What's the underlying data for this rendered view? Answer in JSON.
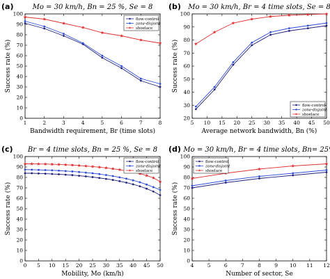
{
  "chart_data": [
    {
      "panel_label": "(a)",
      "type": "line",
      "title": "Mo = 30 km/h, Bn = 25 %, Se = 8",
      "xlabel": "Bandwidth requirement, Br (time slots)",
      "ylabel": "Success rate (%)",
      "xlim": [
        1,
        8
      ],
      "ylim": [
        0,
        100
      ],
      "xticks": [
        1,
        2,
        3,
        4,
        5,
        6,
        7,
        8
      ],
      "yticks": [
        0,
        10,
        20,
        30,
        40,
        50,
        60,
        70,
        80,
        90,
        100
      ],
      "legend_position": "top-right",
      "series": [
        {
          "name": "flow-control",
          "color": "#1f1f7a",
          "marker": "circle",
          "x": [
            1,
            2,
            3,
            4,
            5,
            6,
            7,
            8
          ],
          "values": [
            91,
            86,
            79,
            71,
            58,
            48,
            36,
            30
          ]
        },
        {
          "name": "zone-disjoint",
          "color": "#2b4bd6",
          "marker": "circle",
          "x": [
            1,
            2,
            3,
            4,
            5,
            6,
            7,
            8
          ],
          "values": [
            93,
            88,
            81,
            72,
            60,
            50,
            38,
            33
          ]
        },
        {
          "name": "shoelace",
          "color": "#e03030",
          "marker": "star",
          "x": [
            1,
            2,
            3,
            4,
            5,
            6,
            7,
            8
          ],
          "values": [
            97,
            95,
            91,
            87,
            82,
            79,
            75,
            72
          ]
        }
      ]
    },
    {
      "panel_label": "(b)",
      "type": "line",
      "title": "Mo = 30 km/h, Br = 4 time slots, Se = 8",
      "xlabel": "Average network bandwidth, Bn (%)",
      "ylabel": "Success rate (%)",
      "xlim": [
        5,
        50
      ],
      "ylim": [
        20,
        100
      ],
      "xticks": [
        5,
        10,
        15,
        20,
        25,
        30,
        35,
        40,
        45,
        50
      ],
      "yticks": [
        20,
        30,
        40,
        50,
        60,
        70,
        80,
        90,
        100
      ],
      "legend_position": "bottom-right",
      "series": [
        {
          "name": "flow-control",
          "color": "#1f1f7a",
          "marker": "circle",
          "x": [
            6.25,
            12.5,
            18.75,
            25,
            31.25,
            37.5,
            43.75,
            50
          ],
          "values": [
            27,
            42,
            61,
            76,
            84,
            87,
            89,
            91
          ]
        },
        {
          "name": "zone-disjoint",
          "color": "#2b4bd6",
          "marker": "circle",
          "x": [
            6.25,
            12.5,
            18.75,
            25,
            31.25,
            37.5,
            43.75,
            50
          ],
          "values": [
            29,
            44,
            63,
            78,
            86,
            89,
            91,
            93
          ]
        },
        {
          "name": "shoelace",
          "color": "#e03030",
          "marker": "star",
          "x": [
            6.25,
            12.5,
            18.75,
            25,
            31.25,
            37.5,
            43.75,
            50
          ],
          "values": [
            77,
            86,
            93,
            96,
            98,
            99,
            99.5,
            100
          ]
        }
      ]
    },
    {
      "panel_label": "(c)",
      "type": "line",
      "title": "Br = 4 time slots, Bn = 25 %, Se = 8",
      "xlabel": "Mobility, Mo (km/h)",
      "ylabel": "Success rate (%)",
      "xlim": [
        0,
        50
      ],
      "ylim": [
        0,
        100
      ],
      "xticks": [
        0,
        5,
        10,
        15,
        20,
        25,
        30,
        35,
        40,
        45,
        50
      ],
      "yticks": [
        0,
        10,
        20,
        30,
        40,
        50,
        60,
        70,
        80,
        90,
        100
      ],
      "legend_position": "top-right",
      "series": [
        {
          "name": "flow-control",
          "color": "#1f1f7a",
          "marker": "circle",
          "x": [
            0,
            2.5,
            5,
            7.5,
            10,
            12.5,
            15,
            17.5,
            20,
            22.5,
            25,
            27.5,
            30,
            32.5,
            35,
            37.5,
            40,
            42.5,
            45,
            47.5,
            50
          ],
          "values": [
            84,
            84,
            83.8,
            83.6,
            83.3,
            83,
            82.6,
            82.2,
            81.6,
            81,
            80.3,
            79.5,
            78.6,
            77.6,
            76.4,
            75,
            73.4,
            71.5,
            69.2,
            66.5,
            63
          ]
        },
        {
          "name": "zone-disjoint",
          "color": "#2b4bd6",
          "marker": "circle",
          "x": [
            0,
            2.5,
            5,
            7.5,
            10,
            12.5,
            15,
            17.5,
            20,
            22.5,
            25,
            27.5,
            30,
            32.5,
            35,
            37.5,
            40,
            42.5,
            45,
            47.5,
            50
          ],
          "values": [
            87.5,
            87.4,
            87.2,
            87,
            86.8,
            86.5,
            86.1,
            85.7,
            85.2,
            84.6,
            84,
            83.2,
            82.3,
            81.3,
            80.1,
            78.8,
            77.2,
            75.4,
            73.2,
            70.7,
            68
          ]
        },
        {
          "name": "shoelace",
          "color": "#e03030",
          "marker": "star",
          "x": [
            0,
            2.5,
            5,
            7.5,
            10,
            12.5,
            15,
            17.5,
            20,
            22.5,
            25,
            27.5,
            30,
            32.5,
            35,
            37.5,
            40,
            42.5,
            45,
            47.5,
            50
          ],
          "values": [
            93,
            93,
            92.9,
            92.8,
            92.6,
            92.4,
            92.1,
            91.8,
            91.4,
            90.9,
            90.4,
            89.8,
            89.1,
            88.3,
            87.4,
            86.3,
            85.1,
            83.6,
            81.8,
            79.6,
            76
          ]
        }
      ]
    },
    {
      "panel_label": "(d)",
      "type": "line",
      "title": "Mo = 30 km/h, Br = 4 time slots, Bn= 25%",
      "xlabel": "Number of sector, Se",
      "ylabel": "Success rate (%)",
      "xlim": [
        4,
        12
      ],
      "ylim": [
        0,
        100
      ],
      "xticks": [
        4,
        5,
        6,
        7,
        8,
        9,
        10,
        11,
        12
      ],
      "yticks": [
        0,
        10,
        20,
        30,
        40,
        50,
        60,
        70,
        80,
        90,
        100
      ],
      "legend_position": "top-left",
      "series": [
        {
          "name": "flow-control",
          "color": "#1f1f7a",
          "marker": "circle",
          "x": [
            4,
            6,
            8,
            10,
            12
          ],
          "values": [
            70,
            75,
            79,
            82,
            85
          ]
        },
        {
          "name": "zone-disjoint",
          "color": "#2b4bd6",
          "marker": "circle",
          "x": [
            4,
            6,
            8,
            10,
            12
          ],
          "values": [
            72,
            77,
            81,
            84,
            87
          ]
        },
        {
          "name": "shoelace",
          "color": "#e03030",
          "marker": "star",
          "x": [
            4,
            6,
            8,
            10,
            12
          ],
          "values": [
            79,
            84,
            88,
            91,
            93
          ]
        }
      ]
    }
  ]
}
